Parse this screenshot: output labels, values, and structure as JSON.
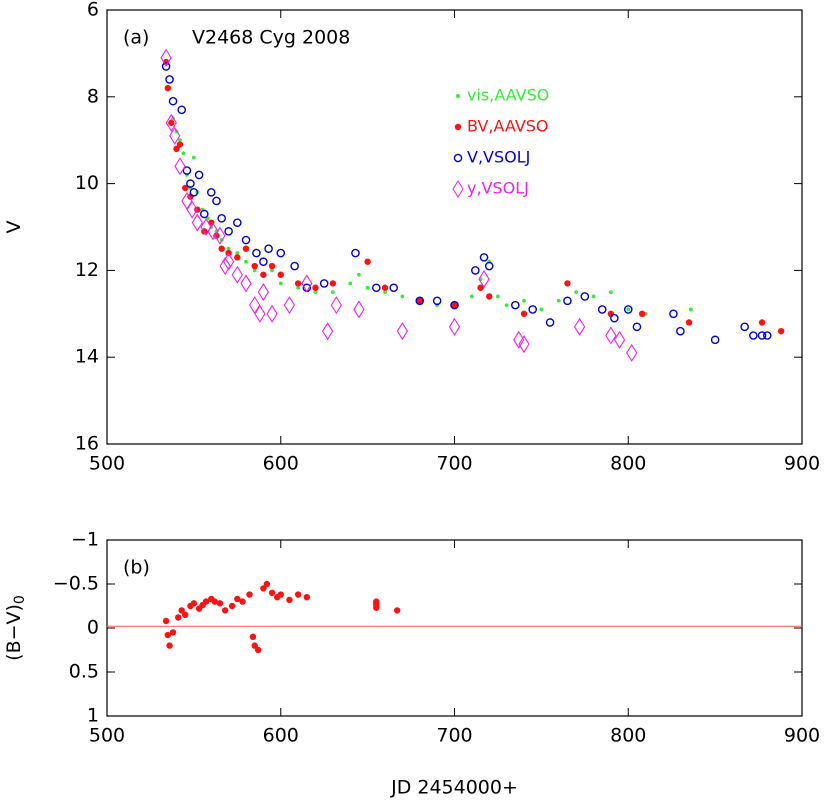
{
  "chart_data": [
    {
      "type": "scatter",
      "panel_label": "(a)",
      "title": "V2468 Cyg 2008",
      "ylabel": "V",
      "xlim": [
        500,
        900
      ],
      "xticks": [
        500,
        600,
        700,
        800,
        900
      ],
      "ylim": [
        16,
        6
      ],
      "yticks": [
        6,
        8,
        10,
        12,
        14,
        16
      ],
      "series": [
        {
          "name": "vis,AAVSO",
          "color": "#33ee33",
          "marker": "dot",
          "x": [
            534,
            536,
            538,
            540,
            542,
            544,
            546,
            548,
            550,
            552,
            555,
            558,
            560,
            563,
            566,
            570,
            575,
            580,
            585,
            590,
            595,
            600,
            610,
            620,
            630,
            640,
            645,
            650,
            660,
            670,
            680,
            690,
            700,
            710,
            715,
            720,
            725,
            730,
            740,
            750,
            760,
            770,
            780,
            790,
            800,
            810,
            836
          ],
          "values": [
            7.2,
            7.8,
            8.5,
            8.8,
            9.0,
            9.3,
            9.8,
            10.1,
            9.4,
            10.2,
            10.6,
            10.8,
            11.0,
            11.1,
            11.3,
            11.5,
            11.6,
            11.8,
            12.0,
            12.1,
            12.0,
            12.3,
            12.4,
            12.5,
            12.5,
            12.3,
            12.1,
            12.4,
            12.5,
            12.6,
            12.7,
            12.8,
            12.8,
            12.6,
            12.2,
            11.8,
            12.6,
            12.8,
            12.7,
            12.9,
            12.7,
            12.5,
            12.6,
            12.5,
            12.9,
            13.0,
            12.9
          ]
        },
        {
          "name": "BV,AAVSO",
          "color": "#ff1111",
          "marker": "filled-circle",
          "x": [
            534,
            535,
            537,
            540,
            542,
            545,
            548,
            552,
            556,
            560,
            563,
            566,
            570,
            575,
            580,
            585,
            590,
            595,
            600,
            610,
            620,
            630,
            650,
            660,
            680,
            700,
            715,
            720,
            740,
            765,
            790,
            808,
            835,
            877,
            888
          ],
          "values": [
            7.2,
            7.8,
            8.6,
            9.2,
            9.1,
            10.1,
            10.3,
            10.6,
            11.1,
            10.9,
            11.2,
            11.5,
            11.6,
            11.7,
            11.5,
            11.9,
            12.1,
            11.9,
            12.1,
            12.3,
            12.4,
            12.3,
            11.8,
            12.4,
            12.7,
            12.8,
            12.4,
            12.6,
            13.0,
            12.3,
            13.0,
            13.0,
            13.2,
            13.2,
            13.4
          ]
        },
        {
          "name": "V,VSOLJ",
          "color": "#0000dd",
          "marker": "open-circle",
          "x": [
            534,
            536,
            538,
            543,
            546,
            548,
            550,
            553,
            556,
            560,
            563,
            566,
            570,
            575,
            580,
            586,
            590,
            593,
            600,
            608,
            615,
            625,
            643,
            655,
            665,
            680,
            690,
            700,
            712,
            717,
            720,
            735,
            745,
            755,
            765,
            775,
            785,
            792,
            800,
            805,
            826,
            830,
            850,
            867,
            872,
            877,
            880
          ],
          "values": [
            7.3,
            7.6,
            8.1,
            8.3,
            9.7,
            10.0,
            10.2,
            9.8,
            10.7,
            10.2,
            10.4,
            10.8,
            11.1,
            10.9,
            11.3,
            11.6,
            11.8,
            11.5,
            11.6,
            11.9,
            12.4,
            12.3,
            11.6,
            12.4,
            12.4,
            12.7,
            12.7,
            12.8,
            12.0,
            11.7,
            11.9,
            12.8,
            12.9,
            13.2,
            12.7,
            12.6,
            12.9,
            13.1,
            12.9,
            13.3,
            13.0,
            13.4,
            13.6,
            13.3,
            13.5,
            13.5,
            13.5
          ]
        },
        {
          "name": "y,VSOLJ",
          "color": "#ee22ee",
          "marker": "diamond",
          "x": [
            534,
            537,
            539,
            542,
            546,
            549,
            552,
            557,
            561,
            565,
            568,
            570,
            575,
            580,
            585,
            588,
            590,
            595,
            605,
            615,
            627,
            632,
            645,
            670,
            700,
            717,
            737,
            740,
            772,
            790,
            795,
            802
          ],
          "values": [
            7.1,
            8.6,
            8.9,
            9.6,
            10.4,
            10.6,
            10.9,
            11.0,
            11.1,
            11.2,
            11.9,
            11.8,
            12.1,
            12.3,
            12.8,
            13.0,
            12.5,
            13.0,
            12.8,
            12.3,
            13.4,
            12.8,
            12.9,
            13.4,
            13.3,
            12.2,
            13.6,
            13.7,
            13.3,
            13.5,
            13.6,
            13.9
          ]
        }
      ]
    },
    {
      "type": "scatter",
      "panel_label": "(b)",
      "ylabel": "(B−V)",
      "ylabel_sub": "0",
      "xlabel": "JD 2454000+",
      "xlim": [
        500,
        900
      ],
      "xticks": [
        500,
        600,
        700,
        800,
        900
      ],
      "ylim": [
        1,
        -1
      ],
      "yticks": [
        {
          "value": -1,
          "label": "−1"
        },
        {
          "value": -0.5,
          "label": "−0.5"
        },
        0,
        0.5,
        1
      ],
      "hline": -0.02,
      "hline_color": "#ff5555",
      "series": [
        {
          "color": "#ff1111",
          "marker": "filled-circle",
          "x": [
            534,
            535,
            536,
            538,
            541,
            543,
            545,
            548,
            550,
            553,
            555,
            557,
            560,
            562,
            565,
            568,
            572,
            575,
            578,
            582,
            584,
            585,
            587,
            590,
            592,
            595,
            598,
            600,
            605,
            610,
            615,
            655,
            655,
            655,
            655,
            667
          ],
          "values": [
            -0.08,
            0.08,
            0.2,
            0.05,
            -0.12,
            -0.2,
            -0.15,
            -0.25,
            -0.28,
            -0.22,
            -0.26,
            -0.3,
            -0.33,
            -0.3,
            -0.28,
            -0.2,
            -0.25,
            -0.33,
            -0.3,
            -0.38,
            0.1,
            0.2,
            0.25,
            -0.45,
            -0.5,
            -0.4,
            -0.35,
            -0.38,
            -0.32,
            -0.38,
            -0.35,
            -0.23,
            -0.26,
            -0.28,
            -0.3,
            -0.2
          ]
        }
      ]
    }
  ]
}
